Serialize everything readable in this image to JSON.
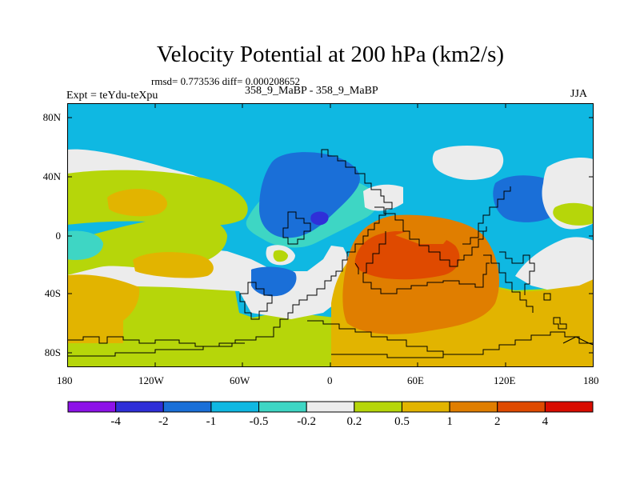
{
  "plot": {
    "title": "Velocity Potential at 200 hPa (km2/s)",
    "stats": "rmsd= 0.773536  diff= 0.000208652",
    "left_label": "Expt = teYdu-teXpu",
    "center_label": "358_9_MaBP - 358_9_MaBP",
    "right_label": "JJA"
  },
  "map": {
    "y_ticks": [
      "80N",
      "40N",
      "0",
      "40S",
      "80S"
    ],
    "x_ticks": [
      "180",
      "120W",
      "60W",
      "0",
      "60E",
      "120E",
      "180"
    ]
  },
  "colorbar": {
    "colors": [
      "#8d12e8",
      "#2f2fd8",
      "#1a6fd8",
      "#0fb8e2",
      "#3ed6c4",
      "#ececec",
      "#b6d60a",
      "#e2b400",
      "#e07e00",
      "#df4a00",
      "#d90c00"
    ],
    "labels": [
      "-4",
      "-2",
      "-1",
      "-0.5",
      "-0.2",
      "0.2",
      "0.5",
      "1",
      "2",
      "4"
    ]
  },
  "colors": {
    "coast": "#000000",
    "frame": "#000000"
  }
}
